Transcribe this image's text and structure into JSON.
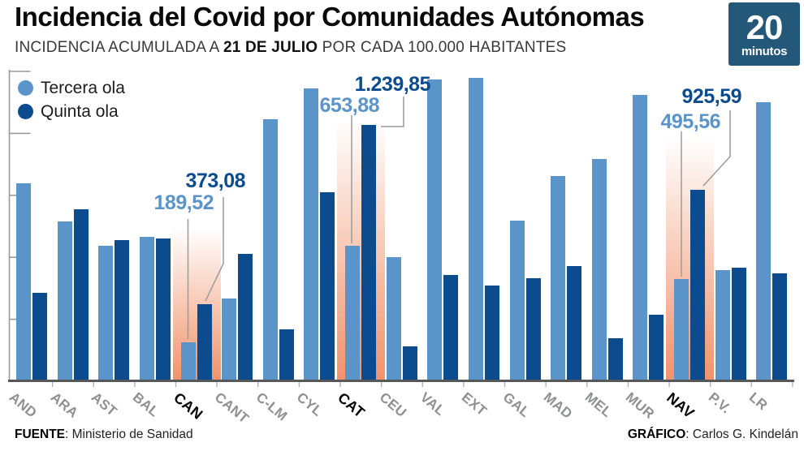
{
  "header": {
    "title": "Incidencia del Covid por Comunidades Autónomas",
    "subtitle_prefix": "INCIDENCIA ACUMULADA A ",
    "subtitle_bold": "21 DE JULIO",
    "subtitle_suffix": " POR CADA 100.000 HABITANTES",
    "logo_number": "20",
    "logo_word": "minutos",
    "logo_bg_color": "#235879"
  },
  "legend": [
    {
      "label": "Tercera ola",
      "color": "#5b94c9"
    },
    {
      "label": "Quinta ola",
      "color": "#0d4b8f"
    }
  ],
  "chart_data": {
    "type": "bar",
    "title": "Incidencia del Covid por Comunidades Autónomas",
    "subtitle": "Incidencia acumulada a 21 de julio por cada 100.000 habitantes",
    "categories": [
      "AND",
      "ARA",
      "AST",
      "BAL",
      "CAN",
      "CANT",
      "C-LM",
      "CYL",
      "CAT",
      "CEU",
      "VAL",
      "EXT",
      "GAL",
      "MAD",
      "MEL",
      "MUR",
      "NAV",
      "P.V.",
      "LR"
    ],
    "series": [
      {
        "name": "Tercera ola",
        "color": "#5b94c9",
        "values": [
          960,
          772,
          655,
          698,
          189.52,
          400,
          1270,
          1419,
          653.88,
          600,
          1462,
          1470,
          776,
          992,
          1074,
          1388,
          495.56,
          537,
          1352
        ]
      },
      {
        "name": "Quinta ola",
        "color": "#0d4b8f",
        "values": [
          427,
          831,
          682,
          690,
          373.08,
          615,
          251,
          913,
          1239.85,
          169,
          514,
          463,
          498,
          557,
          208,
          321,
          925.59,
          549,
          521
        ]
      }
    ],
    "ylim": [
      0,
      1500
    ],
    "y_ticks": [
      300,
      600,
      900,
      1200,
      1500
    ],
    "grid": false,
    "legend_position": "top-left",
    "highlighted_categories": [
      "CAN",
      "CAT",
      "NAV"
    ],
    "highlight_glow_color": "#ee7f50",
    "annotations": [
      {
        "category": "CAN",
        "tercera_label": "189,52",
        "quinta_label": "373,08"
      },
      {
        "category": "CAT",
        "tercera_label": "653,88",
        "quinta_label": "1.239,85"
      },
      {
        "category": "NAV",
        "tercera_label": "495,56",
        "quinta_label": "925,59"
      }
    ],
    "axis_color": "#9b9b9b",
    "baseline_color": "#57585a"
  },
  "footer": {
    "source_label": "FUENTE",
    "source_value": ": Ministerio de Sanidad",
    "credit_label": "GRÁFICO",
    "credit_value": ": Carlos G. Kindelán"
  }
}
